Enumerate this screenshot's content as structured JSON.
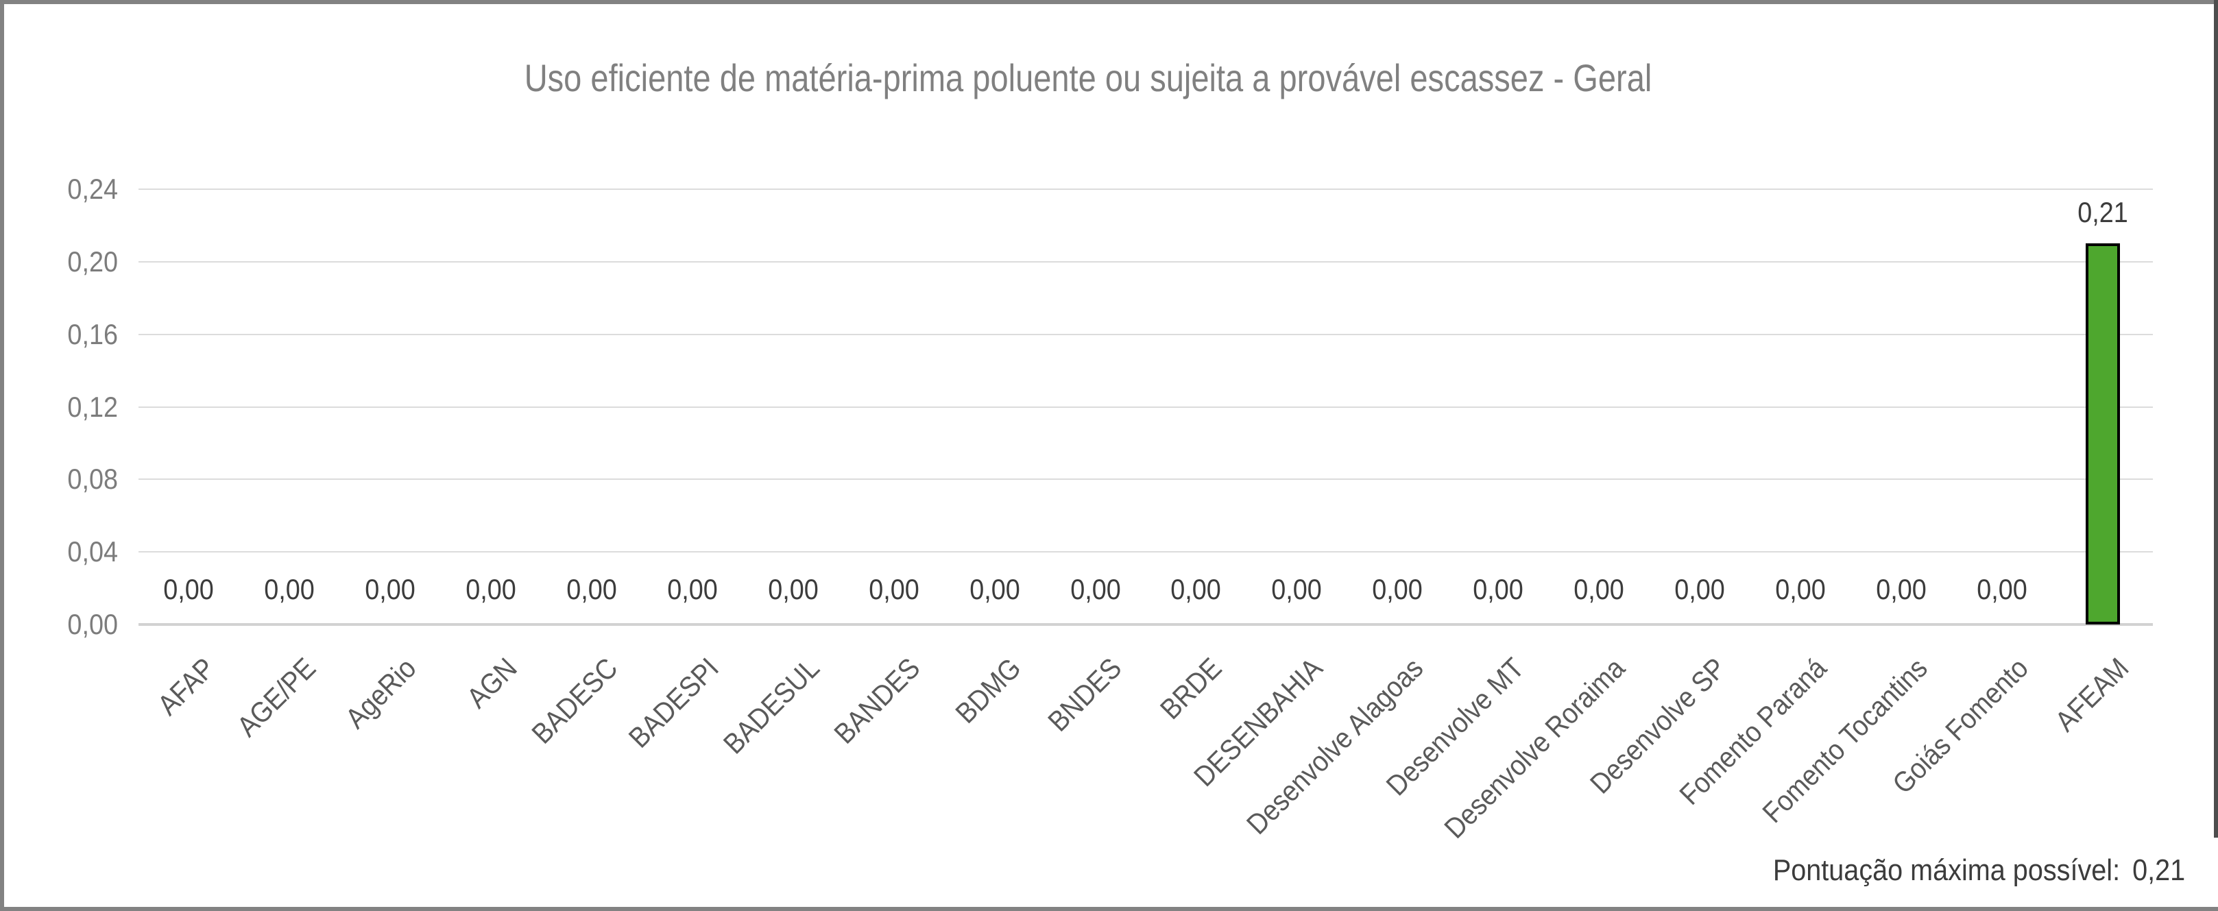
{
  "chart_data": {
    "type": "bar",
    "title": "Uso eficiente de matéria-prima poluente ou sujeita a provável escassez - Geral",
    "categories": [
      "AFAP",
      "AGE/PE",
      "AgeRio",
      "AGN",
      "BADESC",
      "BADESPI",
      "BADESUL",
      "BANDES",
      "BDMG",
      "BNDES",
      "BRDE",
      "DESENBAHIA",
      "Desenvolve Alagoas",
      "Desenvolve MT",
      "Desenvolve Roraima",
      "Desenvolve SP",
      "Fomento Paraná",
      "Fomento Tocantins",
      "Goiás Fomento",
      "AFEAM"
    ],
    "values": [
      0,
      0,
      0,
      0,
      0,
      0,
      0,
      0,
      0,
      0,
      0,
      0,
      0,
      0,
      0,
      0,
      0,
      0,
      0,
      0.21
    ],
    "value_labels": [
      "0,00",
      "0,00",
      "0,00",
      "0,00",
      "0,00",
      "0,00",
      "0,00",
      "0,00",
      "0,00",
      "0,00",
      "0,00",
      "0,00",
      "0,00",
      "0,00",
      "0,00",
      "0,00",
      "0,00",
      "0,00",
      "0,00",
      "0,21"
    ],
    "xlabel": "",
    "ylabel": "",
    "ylim": [
      0,
      0.24
    ],
    "y_tick_values": [
      0,
      0.04,
      0.08,
      0.12,
      0.16,
      0.2,
      0.24
    ],
    "y_tick_labels": [
      "0,00",
      "0,04",
      "0,08",
      "0,12",
      "0,16",
      "0,20",
      "0,24"
    ],
    "grid": true,
    "legend": "none",
    "bar_color": "#4EA72E",
    "bar_border_color": "#000000",
    "highlight_category": "AFEAM"
  },
  "footnote": {
    "label": "Pontuação máxima possível:",
    "value": "0,21"
  },
  "colors": {
    "bar_fill": "#4EA72E",
    "bar_border": "#000000",
    "title_text": "#808080",
    "axis_tick_text": "#7c7c7c",
    "category_text": "#5a5a5a",
    "data_label_text": "#3c3c3c",
    "gridline": "#dcdcdc",
    "frame_border": "#828282",
    "right_edge_line": "#4d4d4d"
  }
}
